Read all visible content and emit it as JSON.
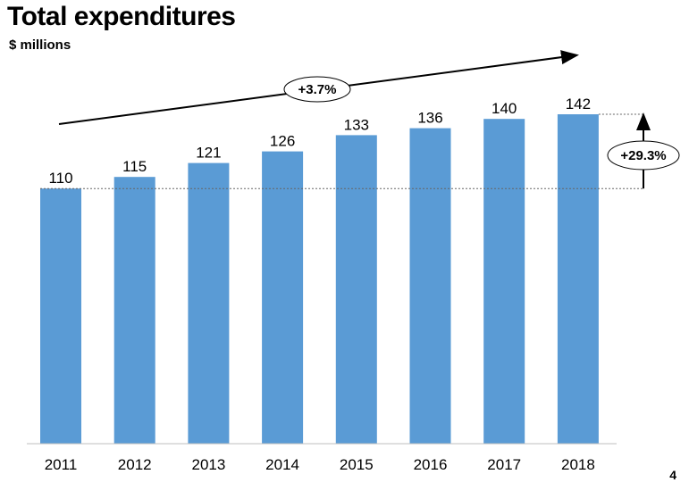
{
  "header": {
    "title": "Total expenditures",
    "subtitle": "$ millions"
  },
  "footer": {
    "page_number": "4"
  },
  "annotations": {
    "trend_label": "+3.7%",
    "growth_label": "+29.3%"
  },
  "colors": {
    "bar": "#5A9BD5",
    "axis": "#bfbfbf",
    "annotation": "#000000"
  },
  "chart_data": {
    "type": "bar",
    "title": "Total expenditures",
    "ylabel": "$ millions",
    "categories": [
      "2011",
      "2012",
      "2013",
      "2014",
      "2015",
      "2016",
      "2017",
      "2018"
    ],
    "values": [
      110,
      115,
      121,
      126,
      133,
      136,
      140,
      142
    ],
    "ylim": [
      0,
      142
    ],
    "grid": false,
    "legend": "none"
  }
}
